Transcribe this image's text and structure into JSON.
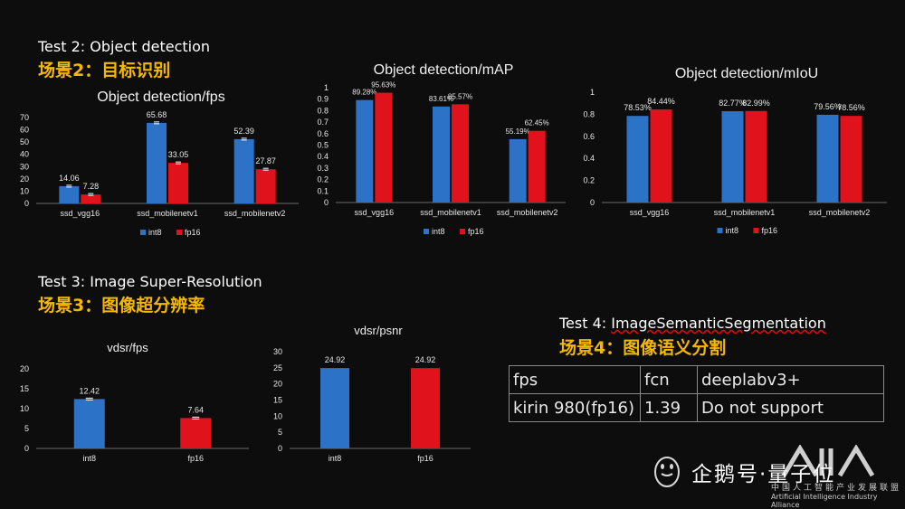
{
  "sections": {
    "test2": {
      "en": "Test 2: Object detection",
      "zh": "场景2：目标识别"
    },
    "test3": {
      "en": "Test 3: Image Super-Resolution",
      "zh": "场景3：图像超分辨率"
    },
    "test4": {
      "en_prefix": "Test 4: ",
      "en_name": "ImageSemanticSegmentation",
      "zh": "场景4：图像语义分割"
    }
  },
  "colors": {
    "int8": "#2c72c7",
    "fp16": "#e0121c",
    "axis_text": "#e6e6e6",
    "title_text": "#f0f0f0"
  },
  "legend": {
    "int8": "int8",
    "fp16": "fp16"
  },
  "table": {
    "header": [
      "fps",
      "fcn",
      "deeplabv3+"
    ],
    "row": [
      "kirin 980(fp16)",
      "1.39",
      "Do not support"
    ]
  },
  "watermark": {
    "brand": "企鹅号·量子位",
    "alliance_zh": "中国人工智能产业发展联盟",
    "alliance_en": "Artificial Intelligence Industry Alliance"
  },
  "chart_data": [
    {
      "id": "fps",
      "type": "bar",
      "title": "Object detection/fps",
      "categories": [
        "ssd_vgg16",
        "ssd_mobilenetv1",
        "ssd_mobilenetv2"
      ],
      "series": [
        {
          "name": "int8",
          "values": [
            14.06,
            65.68,
            52.39
          ],
          "labels": [
            "14.06",
            "65.68",
            "52.39"
          ],
          "error_bars": true
        },
        {
          "name": "fp16",
          "values": [
            7.28,
            33.05,
            27.87
          ],
          "labels": [
            "7.28",
            "33.05",
            "27.87"
          ],
          "error_bars": true
        }
      ],
      "ylim": [
        0,
        70
      ],
      "yticks": [
        "0",
        "10",
        "20",
        "30",
        "40",
        "50",
        "60",
        "70"
      ],
      "legend": "bottom"
    },
    {
      "id": "map",
      "type": "bar",
      "title": "Object detection/mAP",
      "categories": [
        "ssd_vgg16",
        "ssd_mobilenetv1",
        "ssd_mobilenetv2"
      ],
      "series": [
        {
          "name": "int8",
          "values": [
            0.8928,
            0.8361,
            0.5519
          ],
          "labels": [
            "89.28%",
            "83.61%",
            "55.19%"
          ]
        },
        {
          "name": "fp16",
          "values": [
            0.9563,
            0.8557,
            0.6245
          ],
          "labels": [
            "95.63%",
            "85.57%",
            "62.45%"
          ]
        }
      ],
      "ylim": [
        0,
        1
      ],
      "yticks": [
        "0",
        "0.1",
        "0.2",
        "0.3",
        "0.4",
        "0.5",
        "0.6",
        "0.7",
        "0.8",
        "0.9",
        "1"
      ],
      "legend": "bottom"
    },
    {
      "id": "miou",
      "type": "bar",
      "title": "Object detection/mIoU",
      "categories": [
        "ssd_vgg16",
        "ssd_mobilenetv1",
        "ssd_mobilenetv2"
      ],
      "series": [
        {
          "name": "int8",
          "values": [
            0.7853,
            0.8277,
            0.7956
          ],
          "labels": [
            "78.53%",
            "82.77%",
            "79.56%"
          ]
        },
        {
          "name": "fp16",
          "values": [
            0.8444,
            0.8299,
            0.7856
          ],
          "labels": [
            "84.44%",
            "82.99%",
            "78.56%"
          ]
        }
      ],
      "ylim": [
        0,
        1
      ],
      "yticks": [
        "0",
        "0.2",
        "0.4",
        "0.6",
        "0.8",
        "1"
      ],
      "legend": "bottom"
    },
    {
      "id": "vdsr_fps",
      "type": "bar",
      "title": "vdsr/fps",
      "categories": [
        "int8",
        "fp16"
      ],
      "values": [
        12.42,
        7.64
      ],
      "labels": [
        "12.42",
        "7.64"
      ],
      "error_bars": true,
      "ylim": [
        0,
        20
      ],
      "yticks": [
        "0",
        "5",
        "10",
        "15",
        "20"
      ]
    },
    {
      "id": "vdsr_psnr",
      "type": "bar",
      "title": "vdsr/psnr",
      "categories": [
        "int8",
        "fp16"
      ],
      "values": [
        24.92,
        24.92
      ],
      "labels": [
        "24.92",
        "24.92"
      ],
      "ylim": [
        0,
        30
      ],
      "yticks": [
        "0",
        "5",
        "10",
        "15",
        "20",
        "25",
        "30"
      ]
    }
  ]
}
